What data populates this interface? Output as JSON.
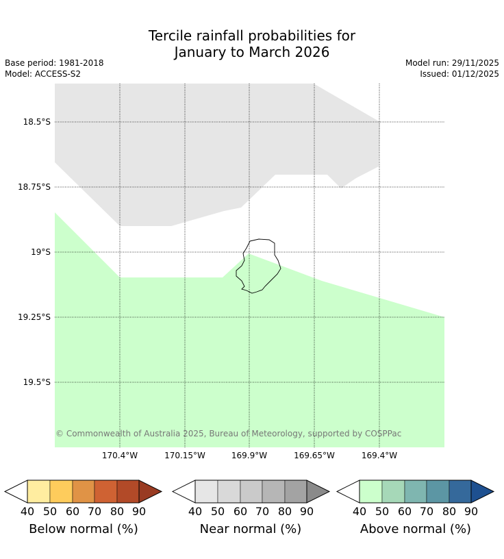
{
  "title": {
    "line1": "Tercile rainfall probabilities for",
    "line2": "January to March 2026"
  },
  "meta": {
    "base_period": "Base period: 1981-2018",
    "model": "Model: ACCESS-S2",
    "model_run": "Model run: 29/11/2025",
    "issued": "Issued: 01/12/2025"
  },
  "map": {
    "latitude_labels": [
      "18.5°S",
      "18.75°S",
      "19°S",
      "19.25°S",
      "19.5°S"
    ],
    "longitude_labels": [
      "170.4°W",
      "170.15°W",
      "169.9°W",
      "169.65°W",
      "169.4°W"
    ],
    "copyright": "© Commonwealth of Australia 2025, Bureau of Meteorology, supported by COSPPac",
    "colors": {
      "near_normal_region": "#e6e6e6",
      "above_normal_region": "#ccffcc",
      "gridline": "#000000",
      "coastline": "#000000"
    }
  },
  "colorbars": [
    {
      "title": "Below normal (%)",
      "ticks": [
        "40",
        "50",
        "60",
        "70",
        "80",
        "90"
      ],
      "colors": [
        "#ffeda0",
        "#fecc5c",
        "#e09346",
        "#cf6233",
        "#b24a28"
      ],
      "over_color": "#993b22"
    },
    {
      "title": "Near normal (%)",
      "ticks": [
        "40",
        "50",
        "60",
        "70",
        "80",
        "90"
      ],
      "colors": [
        "#e6e6e6",
        "#d9d9d9",
        "#cacaca",
        "#b6b6b6",
        "#a3a3a3"
      ],
      "over_color": "#8a8a8a"
    },
    {
      "title": "Above normal (%)",
      "ticks": [
        "40",
        "50",
        "60",
        "70",
        "80",
        "90"
      ],
      "colors": [
        "#ccffcc",
        "#a6d8b8",
        "#7fb6b0",
        "#5c96a4",
        "#35699b"
      ],
      "over_color": "#1e5090"
    }
  ]
}
